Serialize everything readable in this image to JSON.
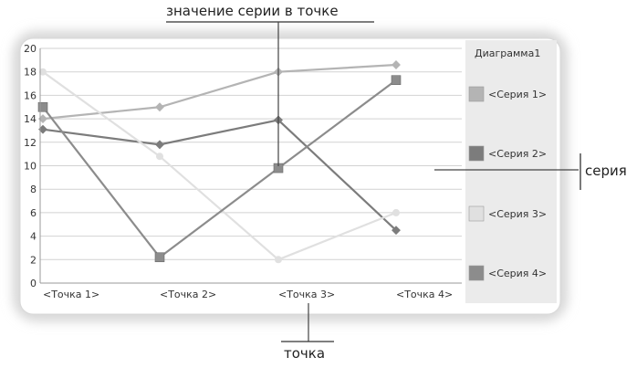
{
  "chart_data": {
    "type": "line",
    "categories": [
      "<Точка 1>",
      "<Точка 2>",
      "<Точка 3>",
      "<Точка 4>"
    ],
    "ylim": [
      0,
      20
    ],
    "yticks": [
      "0",
      "2",
      "4",
      "6",
      "8",
      "10",
      "12",
      "14",
      "16",
      "18",
      "20"
    ],
    "grid": true,
    "legend_position": "right",
    "legend_title": "Диаграмма1",
    "series": [
      {
        "name": "<Серия 1>",
        "values": [
          14,
          15,
          18,
          18.6
        ],
        "color": "#b4b4b4",
        "marker": "diamond"
      },
      {
        "name": "<Серия 2>",
        "values": [
          13.1,
          11.8,
          13.9,
          4.5
        ],
        "color": "#7c7c7c",
        "marker": "diamond"
      },
      {
        "name": "<Серия 3>",
        "values": [
          18,
          10.8,
          2,
          6
        ],
        "color": "#e0e0e0",
        "marker": "circle"
      },
      {
        "name": "<Серия 4>",
        "values": [
          15,
          2.2,
          9.8,
          17.3
        ],
        "color": "#8c8c8c",
        "marker": "square"
      }
    ],
    "annotations": {
      "point_value": "значение серии в точке",
      "series": "серия",
      "point": "точка"
    }
  }
}
